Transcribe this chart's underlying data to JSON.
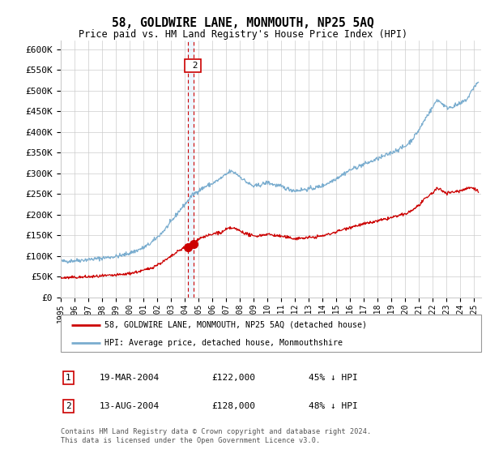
{
  "title": "58, GOLDWIRE LANE, MONMOUTH, NP25 5AQ",
  "subtitle": "Price paid vs. HM Land Registry's House Price Index (HPI)",
  "legend_line1": "58, GOLDWIRE LANE, MONMOUTH, NP25 5AQ (detached house)",
  "legend_line2": "HPI: Average price, detached house, Monmouthshire",
  "table_row1": [
    "1",
    "19-MAR-2004",
    "£122,000",
    "45% ↓ HPI"
  ],
  "table_row2": [
    "2",
    "13-AUG-2004",
    "£128,000",
    "48% ↓ HPI"
  ],
  "footnote": "Contains HM Land Registry data © Crown copyright and database right 2024.\nThis data is licensed under the Open Government Licence v3.0.",
  "red_color": "#cc0000",
  "blue_color": "#7aadcf",
  "blue_shade": "#ddeeff",
  "background_color": "#ffffff",
  "grid_color": "#cccccc",
  "sale1_x": 2004.22,
  "sale1_y": 122000,
  "sale2_x": 2004.62,
  "sale2_y": 128000,
  "xmin": 1995,
  "xmax": 2025.5,
  "ymin": 0,
  "ymax": 620000,
  "yticks": [
    0,
    50000,
    100000,
    150000,
    200000,
    250000,
    300000,
    350000,
    400000,
    450000,
    500000,
    550000,
    600000
  ],
  "xticks": [
    1995,
    1996,
    1997,
    1998,
    1999,
    2000,
    2001,
    2002,
    2003,
    2004,
    2005,
    2006,
    2007,
    2008,
    2009,
    2010,
    2011,
    2012,
    2013,
    2014,
    2015,
    2016,
    2017,
    2018,
    2019,
    2020,
    2021,
    2022,
    2023,
    2024,
    2025
  ]
}
